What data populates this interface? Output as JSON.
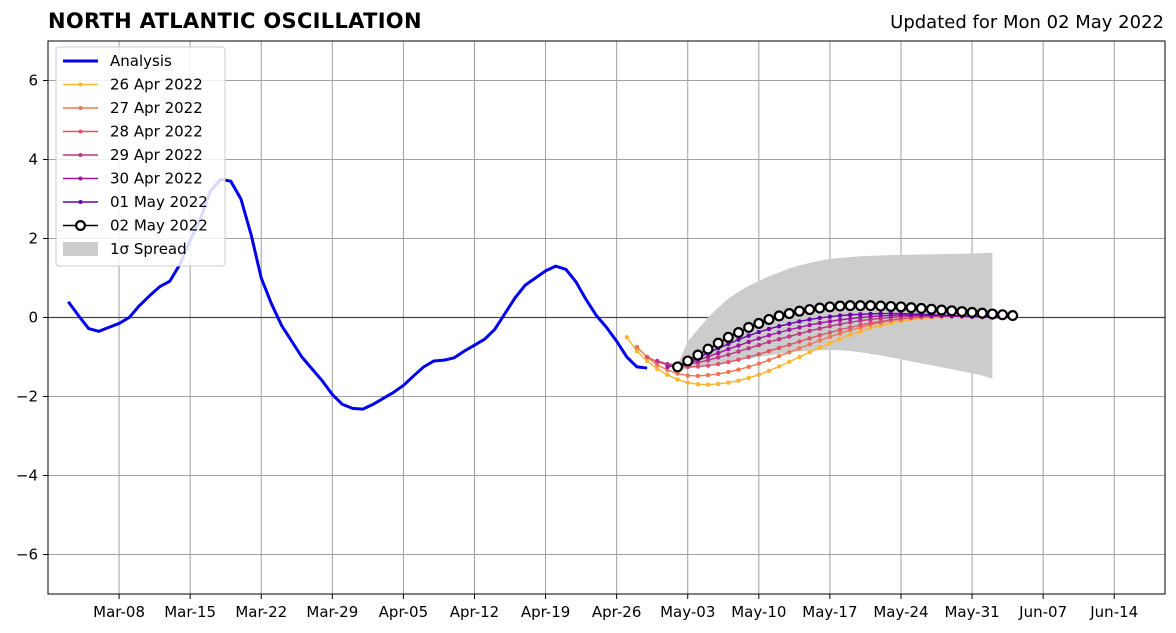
{
  "chart_data": {
    "type": "line",
    "title": "NORTH ATLANTIC OSCILLATION",
    "subtitle": "Updated for Mon 02 May 2022",
    "xlabel": "",
    "ylabel": "",
    "x_range": [
      "2022-03-01",
      "2022-06-19"
    ],
    "ylim": [
      -7,
      7
    ],
    "y_ticks": [
      -6,
      -4,
      -2,
      0,
      2,
      4,
      6
    ],
    "y_tick_labels": [
      "−6",
      "−4",
      "−2",
      "0",
      "2",
      "4",
      "6"
    ],
    "x_ticks": [
      "2022-03-08",
      "2022-03-15",
      "2022-03-22",
      "2022-03-29",
      "2022-04-05",
      "2022-04-12",
      "2022-04-19",
      "2022-04-26",
      "2022-05-03",
      "2022-05-10",
      "2022-05-17",
      "2022-05-24",
      "2022-05-31",
      "2022-06-07",
      "2022-06-14"
    ],
    "x_tick_labels": [
      "Mar-08",
      "Mar-15",
      "Mar-22",
      "Mar-29",
      "Apr-05",
      "Apr-12",
      "Apr-19",
      "Apr-26",
      "May-03",
      "May-10",
      "May-17",
      "May-24",
      "May-31",
      "Jun-07",
      "Jun-14"
    ],
    "grid": true,
    "zero_line": true,
    "legend_position": "top-left",
    "analysis": {
      "name": "Analysis",
      "color": "#0000ee",
      "start_date": "2022-03-03",
      "values": [
        0.4,
        0.05,
        -0.28,
        -0.35,
        -0.25,
        -0.15,
        0.0,
        0.3,
        0.55,
        0.78,
        0.92,
        1.35,
        1.95,
        2.5,
        3.2,
        3.5,
        3.45,
        3.0,
        2.1,
        1.0,
        0.35,
        -0.2,
        -0.6,
        -1.0,
        -1.3,
        -1.6,
        -1.95,
        -2.2,
        -2.3,
        -2.32,
        -2.2,
        -2.05,
        -1.9,
        -1.72,
        -1.48,
        -1.25,
        -1.1,
        -1.08,
        -1.02,
        -0.85,
        -0.7,
        -0.55,
        -0.3,
        0.1,
        0.5,
        0.82,
        1.0,
        1.18,
        1.3,
        1.22,
        0.9,
        0.45,
        0.05,
        -0.25,
        -0.6,
        -1.0,
        -1.25,
        -1.28
      ]
    },
    "spread": {
      "name": "1σ Spread",
      "color": "#cccccc",
      "start_date": "2022-05-02",
      "upper": [
        -1.2,
        -0.6,
        -0.3,
        0.0,
        0.25,
        0.48,
        0.65,
        0.8,
        0.92,
        1.04,
        1.14,
        1.24,
        1.32,
        1.38,
        1.44,
        1.48,
        1.51,
        1.53,
        1.55,
        1.56,
        1.57,
        1.58,
        1.585,
        1.59,
        1.595,
        1.6,
        1.605,
        1.61,
        1.615,
        1.62,
        1.63,
        1.64
      ],
      "lower": [
        -1.35,
        -1.3,
        -1.25,
        -1.2,
        -1.16,
        -1.12,
        -1.08,
        -1.04,
        -1.0,
        -0.96,
        -0.92,
        -0.89,
        -0.86,
        -0.84,
        -0.83,
        -0.82,
        -0.83,
        -0.85,
        -0.88,
        -0.92,
        -0.96,
        -1.01,
        -1.06,
        -1.11,
        -1.16,
        -1.21,
        -1.26,
        -1.31,
        -1.36,
        -1.41,
        -1.47,
        -1.55
      ]
    },
    "series": [
      {
        "name": "26 Apr 2022",
        "color": "#fdb42f",
        "start_date": "2022-04-27",
        "values": [
          -0.5,
          -0.85,
          -1.1,
          -1.3,
          -1.45,
          -1.57,
          -1.65,
          -1.69,
          -1.7,
          -1.68,
          -1.65,
          -1.6,
          -1.53,
          -1.45,
          -1.35,
          -1.24,
          -1.12,
          -1.0,
          -0.88,
          -0.76,
          -0.65,
          -0.54,
          -0.44,
          -0.35,
          -0.27,
          -0.2,
          -0.14,
          -0.09,
          -0.05,
          -0.02,
          0.0,
          0.01,
          0.02,
          0.02,
          0.02,
          0.01,
          0.01,
          0.0
        ]
      },
      {
        "name": "27 Apr 2022",
        "color": "#ed7953",
        "start_date": "2022-04-28",
        "values": [
          -0.75,
          -1.0,
          -1.2,
          -1.33,
          -1.42,
          -1.47,
          -1.48,
          -1.46,
          -1.43,
          -1.38,
          -1.32,
          -1.25,
          -1.17,
          -1.08,
          -0.98,
          -0.88,
          -0.78,
          -0.68,
          -0.58,
          -0.49,
          -0.4,
          -0.32,
          -0.25,
          -0.18,
          -0.13,
          -0.08,
          -0.04,
          -0.01,
          0.01,
          0.02,
          0.03,
          0.03,
          0.03,
          0.02,
          0.02,
          0.01,
          0.0
        ]
      },
      {
        "name": "28 Apr 2022",
        "color": "#d8576b",
        "start_date": "2022-04-29",
        "values": [
          -1.0,
          -1.12,
          -1.2,
          -1.24,
          -1.25,
          -1.24,
          -1.22,
          -1.18,
          -1.13,
          -1.07,
          -1.0,
          -0.93,
          -0.85,
          -0.77,
          -0.69,
          -0.61,
          -0.53,
          -0.45,
          -0.38,
          -0.31,
          -0.25,
          -0.19,
          -0.14,
          -0.1,
          -0.06,
          -0.03,
          -0.01,
          0.01,
          0.02,
          0.03,
          0.03,
          0.03,
          0.02,
          0.02,
          0.01,
          0.0
        ]
      },
      {
        "name": "29 Apr 2022",
        "color": "#bd3786",
        "start_date": "2022-04-30",
        "values": [
          -1.1,
          -1.18,
          -1.2,
          -1.18,
          -1.14,
          -1.08,
          -1.01,
          -0.94,
          -0.86,
          -0.78,
          -0.7,
          -0.62,
          -0.55,
          -0.48,
          -0.41,
          -0.34,
          -0.28,
          -0.22,
          -0.17,
          -0.12,
          -0.08,
          -0.05,
          -0.02,
          0.0,
          0.02,
          0.03,
          0.04,
          0.04,
          0.04,
          0.03,
          0.03,
          0.02,
          0.01,
          0.0,
          0.0
        ]
      },
      {
        "name": "30 Apr 2022",
        "color": "#9c179e",
        "start_date": "2022-05-01",
        "values": [
          -1.25,
          -1.22,
          -1.16,
          -1.08,
          -0.99,
          -0.9,
          -0.8,
          -0.71,
          -0.62,
          -0.53,
          -0.45,
          -0.38,
          -0.31,
          -0.25,
          -0.19,
          -0.14,
          -0.1,
          -0.06,
          -0.03,
          0.0,
          0.02,
          0.04,
          0.05,
          0.06,
          0.06,
          0.06,
          0.05,
          0.05,
          0.04,
          0.03,
          0.02,
          0.01,
          0.0,
          0.0
        ]
      },
      {
        "name": "01 May 2022",
        "color": "#6a00a8",
        "start_date": "2022-05-02",
        "values": [
          -1.3,
          -1.15,
          -1.02,
          -0.9,
          -0.78,
          -0.67,
          -0.56,
          -0.46,
          -0.37,
          -0.29,
          -0.22,
          -0.16,
          -0.1,
          -0.05,
          -0.01,
          0.02,
          0.05,
          0.07,
          0.08,
          0.09,
          0.1,
          0.1,
          0.1,
          0.09,
          0.08,
          0.07,
          0.06,
          0.05,
          0.04,
          0.03,
          0.02,
          0.01,
          0.0
        ]
      }
    ],
    "forecast": {
      "name": "02 May 2022",
      "color": "#000000",
      "marker_fill": "#ffffff",
      "start_date": "2022-05-02",
      "values": [
        -1.25,
        -1.1,
        -0.95,
        -0.8,
        -0.65,
        -0.5,
        -0.38,
        -0.25,
        -0.15,
        -0.05,
        0.04,
        0.1,
        0.16,
        0.2,
        0.24,
        0.27,
        0.29,
        0.3,
        0.3,
        0.3,
        0.29,
        0.28,
        0.27,
        0.25,
        0.23,
        0.21,
        0.19,
        0.17,
        0.15,
        0.13,
        0.11,
        0.09,
        0.07,
        0.05
      ]
    }
  }
}
